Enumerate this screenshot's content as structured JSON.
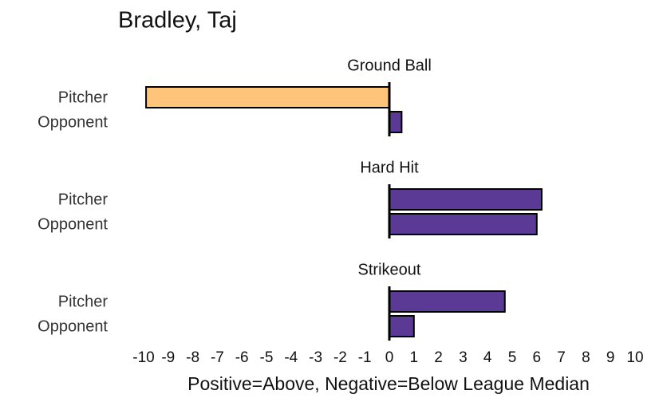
{
  "chart_data": {
    "type": "bar",
    "orientation": "horizontal",
    "title": "Bradley, Taj",
    "x_label": "Positive=Above, Negative=Below League Median",
    "xlim": [
      -10,
      10
    ],
    "xticks": [
      -10,
      -9,
      -8,
      -7,
      -6,
      -5,
      -4,
      -3,
      -2,
      -1,
      0,
      1,
      2,
      3,
      4,
      5,
      6,
      7,
      8,
      9,
      10
    ],
    "panels": [
      {
        "title": "Ground Ball",
        "categories": [
          "Pitcher",
          "Opponent"
        ],
        "values": [
          -9.9,
          0.5
        ],
        "colors": [
          "#fec57a",
          "#5b3a96"
        ]
      },
      {
        "title": "Hard Hit",
        "categories": [
          "Pitcher",
          "Opponent"
        ],
        "values": [
          6.2,
          6.0
        ],
        "colors": [
          "#5b3a96",
          "#5b3a96"
        ]
      },
      {
        "title": "Strikeout",
        "categories": [
          "Pitcher",
          "Opponent"
        ],
        "values": [
          4.7,
          1.0
        ],
        "colors": [
          "#5b3a96",
          "#5b3a96"
        ]
      }
    ]
  }
}
